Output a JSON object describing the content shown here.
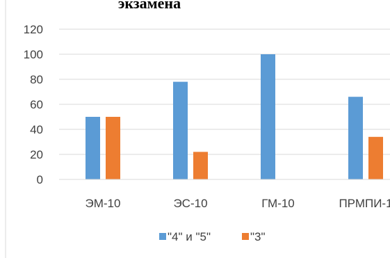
{
  "chart_data": {
    "type": "bar",
    "title": "экзамена",
    "categories": [
      "ЭМ-10",
      "ЭС-10",
      "ГМ-10",
      "ПРМПИ-1"
    ],
    "series": [
      {
        "name": "\"4\" и \"5\"",
        "color": "#5B9BD5",
        "values": [
          50,
          78,
          100,
          66
        ]
      },
      {
        "name": "\"3\"",
        "color": "#ED7D31",
        "values": [
          50,
          22,
          0,
          34
        ]
      }
    ],
    "ylim": [
      0,
      120
    ],
    "yticks": [
      "0",
      "20",
      "40",
      "60",
      "80",
      "100",
      "120"
    ],
    "grid": true,
    "legend": "bottom"
  }
}
